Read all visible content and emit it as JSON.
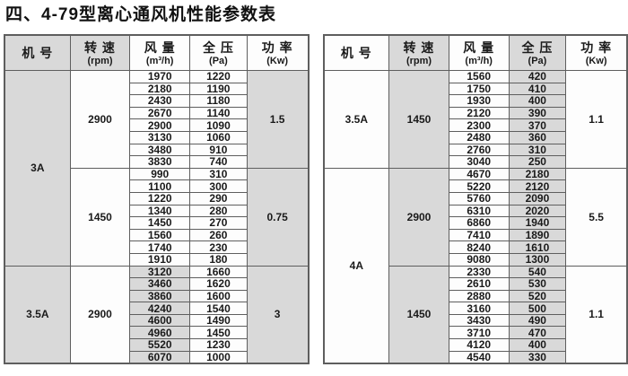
{
  "title": "四、4-79型离心通风机性能参数表",
  "columns": [
    {
      "key": "machine-no",
      "label": "机 号",
      "unit": ""
    },
    {
      "key": "speed",
      "label": "转 速",
      "unit": "(rpm)"
    },
    {
      "key": "flow",
      "label": "风 量",
      "unit": "(m³/h)"
    },
    {
      "key": "pressure",
      "label": "全 压",
      "unit": "(Pa)"
    },
    {
      "key": "power",
      "label": "功 率",
      "unit": "(Kw)"
    }
  ],
  "colors": {
    "shaded_cell": "#d9d9d9",
    "plain_cell": "#fdfdfd",
    "grid_line": "#5e5e5e"
  },
  "tables": [
    {
      "machines": [
        {
          "label": "3A",
          "groups": [
            {
              "speed": "2900",
              "power": "1.5",
              "rows": [
                [
                  "1970",
                  "1220"
                ],
                [
                  "2180",
                  "1190"
                ],
                [
                  "2430",
                  "1180"
                ],
                [
                  "2670",
                  "1140"
                ],
                [
                  "2900",
                  "1090"
                ],
                [
                  "3130",
                  "1060"
                ],
                [
                  "3480",
                  "910"
                ],
                [
                  "3830",
                  "740"
                ]
              ]
            },
            {
              "speed": "1450",
              "power": "0.75",
              "rows": [
                [
                  "990",
                  "310"
                ],
                [
                  "1100",
                  "300"
                ],
                [
                  "1220",
                  "290"
                ],
                [
                  "1340",
                  "280"
                ],
                [
                  "1450",
                  "270"
                ],
                [
                  "1560",
                  "260"
                ],
                [
                  "1740",
                  "230"
                ],
                [
                  "1910",
                  "180"
                ]
              ]
            }
          ]
        },
        {
          "label": "3.5A",
          "groups": [
            {
              "speed": "2900",
              "power": "3",
              "rows": [
                [
                  "3120",
                  "1660"
                ],
                [
                  "3460",
                  "1620"
                ],
                [
                  "3860",
                  "1600"
                ],
                [
                  "4240",
                  "1540"
                ],
                [
                  "4600",
                  "1490"
                ],
                [
                  "4960",
                  "1450"
                ],
                [
                  "5520",
                  "1230"
                ],
                [
                  "6070",
                  "1000"
                ]
              ]
            }
          ]
        }
      ]
    },
    {
      "machines": [
        {
          "label": "3.5A",
          "groups": [
            {
              "speed": "1450",
              "power": "1.1",
              "rows": [
                [
                  "1560",
                  "420"
                ],
                [
                  "1750",
                  "410"
                ],
                [
                  "1930",
                  "400"
                ],
                [
                  "2120",
                  "390"
                ],
                [
                  "2300",
                  "370"
                ],
                [
                  "2480",
                  "360"
                ],
                [
                  "2760",
                  "310"
                ],
                [
                  "3040",
                  "250"
                ]
              ]
            }
          ]
        },
        {
          "label": "4A",
          "groups": [
            {
              "speed": "2900",
              "power": "5.5",
              "rows": [
                [
                  "4670",
                  "2180"
                ],
                [
                  "5220",
                  "2120"
                ],
                [
                  "5760",
                  "2090"
                ],
                [
                  "6310",
                  "2020"
                ],
                [
                  "6860",
                  "1940"
                ],
                [
                  "7410",
                  "1890"
                ],
                [
                  "8240",
                  "1610"
                ],
                [
                  "9080",
                  "1300"
                ]
              ]
            },
            {
              "speed": "1450",
              "power": "1.1",
              "rows": [
                [
                  "2330",
                  "540"
                ],
                [
                  "2610",
                  "530"
                ],
                [
                  "2880",
                  "520"
                ],
                [
                  "3160",
                  "500"
                ],
                [
                  "3430",
                  "490"
                ],
                [
                  "3710",
                  "470"
                ],
                [
                  "4120",
                  "400"
                ],
                [
                  "4540",
                  "330"
                ]
              ]
            }
          ]
        }
      ]
    }
  ]
}
